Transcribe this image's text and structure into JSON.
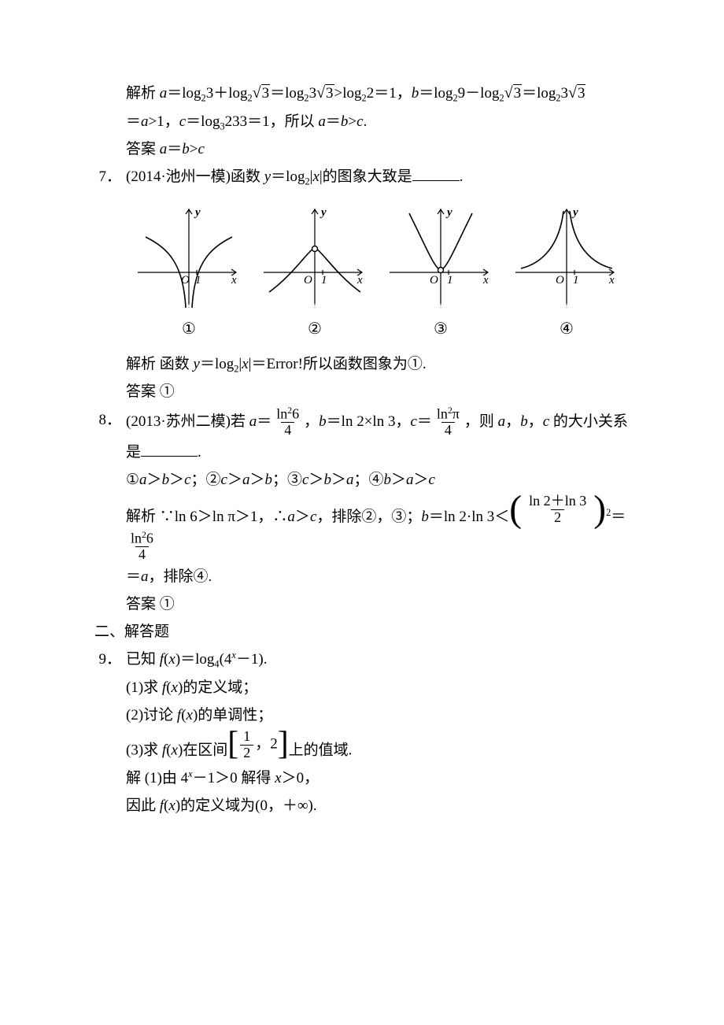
{
  "p6": {
    "analysis_label": "解析",
    "analysis_1": " <em>a</em>＝log<sub>2</sub>3＋log<sub>2</sub><span class='sqrt'><span class='rad'>3</span></span>＝log<sub>2</sub>3<span class='sqrt'><span class='rad'>3</span></span>>log<sub>2</sub>2＝1，<em>b</em>＝log<sub>2</sub>9－log<sub>2</sub><span class='sqrt'><span class='rad'>3</span></span>＝log<sub>2</sub>3<span class='sqrt'><span class='rad'>3</span></span>",
    "analysis_2": "＝<em>a</em>>1，<em>c</em>＝log<sub>3</sub>2<log<sub>3</sub>3＝1，所以 <em>a</em>＝<em>b</em>><em>c</em>.",
    "answer_label": "答案",
    "answer": " <em>a</em>＝<em>b</em>><em>c</em>"
  },
  "p7": {
    "num": "7．",
    "prompt": "(2014·池州一模)函数 <em>y</em>＝log<sub>2</sub>|<em>x</em>|的图象大致是<span class='blank'></span>.",
    "graph_labels": [
      "①",
      "②",
      "③",
      "④"
    ],
    "graphs": {
      "stroke": "#000000",
      "dash_color": "#666666",
      "bg": "#ffffff",
      "axis_label_x": "x",
      "axis_label_y": "y",
      "origin_label": "O",
      "tick_label": "1",
      "axis_fontsize": 15
    },
    "analysis_label": "解析",
    "analysis": " 函数 <em>y</em>＝log<sub>2</sub>|<em>x</em>|＝Error!所以函数图象为①.",
    "answer_label": "答案",
    "answer": " ①"
  },
  "p8": {
    "num": "8．",
    "prompt_1": "(2013·苏州二模)若 <em>a</em>＝<span class='frac'><span class='n'>ln<sup>2</sup>6</span><span class='d'>4</span></span>，<em>b</em>＝ln 2×ln 3，<em>c</em>＝<span class='frac'><span class='n'>ln<sup>2</sup>π</span><span class='d'>4</span></span>，则 <em>a</em>，<em>b</em>，<em>c</em> 的大小关系",
    "prompt_2": "是<span class='blank' style='min-width:72px'></span>.",
    "options": "①<em>a</em>＞<em>b</em>＞<em>c</em>；②<em>c</em>＞<em>a</em>＞<em>b</em>；③<em>c</em>＞<em>b</em>＞<em>a</em>；④<em>b</em>＞<em>a</em>＞<em>c</em>",
    "analysis_label": "解析",
    "analysis_1": " ∵ln 6＞ln π＞1，∴<em>a</em>＞<em>c</em>，排除②，③；<em>b</em>＝ln 2·ln 3＜<span class='paren-brace'><span class='open'>(</span><span class='plinner'><span class='frac'><span class='n'>ln 2＋ln 3</span><span class='d'>2</span></span></span><span class='close'>)</span></span><sup>2</sup>＝<span class='frac'><span class='n'>ln<sup>2</sup>6</span><span class='d'>4</span></span>",
    "analysis_2": "＝<em>a</em>，排除④.",
    "answer_label": "答案",
    "answer": " ①"
  },
  "section2": "二、解答题",
  "p9": {
    "num": "9．",
    "prompt": "已知 <em>f</em>(<em>x</em>)＝log<sub>4</sub>(4<sup><em>x</em></sup>－1).",
    "q1": "(1)求 <em>f</em>(<em>x</em>)的定义域；",
    "q2": "(2)讨论 <em>f</em>(<em>x</em>)的单调性；",
    "q3": "(3)求 <em>f</em>(<em>x</em>)在区间<span class='brak-brace'><span class='open'>[</span><span class='plinner'><span class='frac'><span class='n'>1</span><span class='d'>2</span></span>，2</span><span class='close'>]</span></span>上的值域.",
    "sol_label": "解",
    "sol_1": " (1)由 4<sup><em>x</em></sup>－1＞0 解得 <em>x</em>＞0，",
    "sol_2": "因此 <em>f</em>(<em>x</em>)的定义域为(0，＋∞)."
  }
}
